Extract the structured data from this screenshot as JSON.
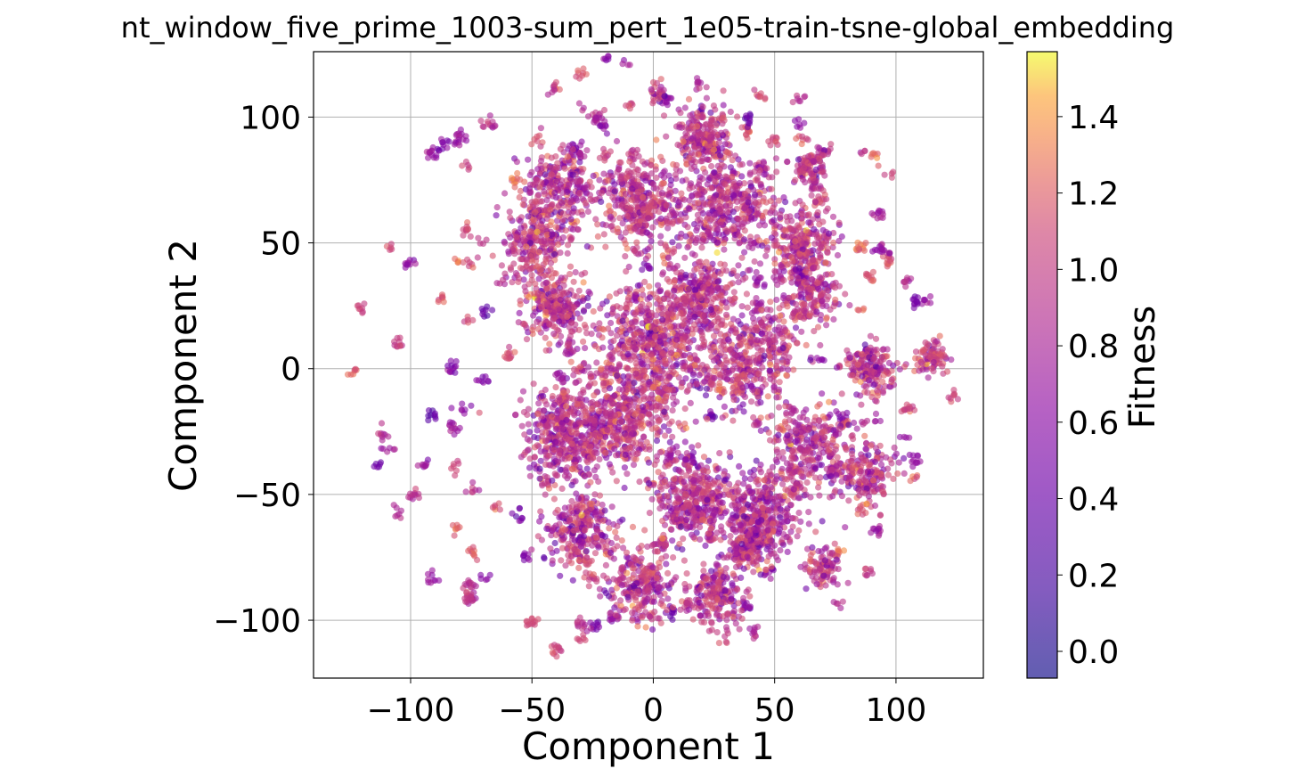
{
  "chart_data": {
    "type": "scatter",
    "title": "nt_window_five_prime_1003-sum_pert_1e05-train-tsne-global_embedding",
    "xlabel": "Component 1",
    "ylabel": "Component 2",
    "xlim": [
      -140,
      136
    ],
    "ylim": [
      -123,
      126
    ],
    "xticks": [
      -100,
      -50,
      0,
      50,
      100
    ],
    "yticks": [
      -100,
      -50,
      0,
      50,
      100
    ],
    "xtick_labels": [
      "−100",
      "−50",
      "0",
      "50",
      "100"
    ],
    "ytick_labels": [
      "−100",
      "−50",
      "0",
      "50",
      "100"
    ],
    "grid": true,
    "colormap": "plasma",
    "point_alpha": 0.6,
    "colorbar": {
      "label": "Fitness",
      "range": [
        -0.07,
        1.57
      ],
      "ticks": [
        0.0,
        0.2,
        0.4,
        0.6,
        0.8,
        1.0,
        1.2,
        1.4
      ],
      "tick_labels": [
        "0.0",
        "0.2",
        "0.4",
        "0.6",
        "0.8",
        "1.0",
        "1.2",
        "1.4"
      ]
    },
    "clusters": [
      {
        "x": -40,
        "y": 25,
        "r": 12,
        "n": 260,
        "value": 0.95
      },
      {
        "x": -35,
        "y": -25,
        "r": 18,
        "n": 420,
        "value": 0.9
      },
      {
        "x": 0,
        "y": 10,
        "r": 22,
        "n": 620,
        "value": 0.95
      },
      {
        "x": -5,
        "y": 65,
        "r": 16,
        "n": 380,
        "value": 0.95
      },
      {
        "x": 20,
        "y": 92,
        "r": 10,
        "n": 180,
        "value": 0.95
      },
      {
        "x": 30,
        "y": 65,
        "r": 18,
        "n": 420,
        "value": 0.9
      },
      {
        "x": -40,
        "y": 70,
        "r": 14,
        "n": 260,
        "value": 0.95
      },
      {
        "x": -50,
        "y": 48,
        "r": 12,
        "n": 200,
        "value": 0.95
      },
      {
        "x": 60,
        "y": 50,
        "r": 14,
        "n": 260,
        "value": 0.95
      },
      {
        "x": 65,
        "y": 30,
        "r": 10,
        "n": 160,
        "value": 0.95
      },
      {
        "x": 40,
        "y": 5,
        "r": 18,
        "n": 380,
        "value": 0.95
      },
      {
        "x": 90,
        "y": 0,
        "r": 9,
        "n": 170,
        "value": 0.95
      },
      {
        "x": 65,
        "y": -30,
        "r": 14,
        "n": 260,
        "value": 0.9
      },
      {
        "x": 45,
        "y": -55,
        "r": 16,
        "n": 340,
        "value": 0.85
      },
      {
        "x": 15,
        "y": -50,
        "r": 16,
        "n": 340,
        "value": 0.9
      },
      {
        "x": -5,
        "y": -85,
        "r": 12,
        "n": 220,
        "value": 0.95
      },
      {
        "x": -30,
        "y": -65,
        "r": 14,
        "n": 260,
        "value": 0.9
      },
      {
        "x": 25,
        "y": -90,
        "r": 10,
        "n": 190,
        "value": 0.9
      },
      {
        "x": 40,
        "y": -70,
        "r": 10,
        "n": 180,
        "value": 0.9
      },
      {
        "x": 88,
        "y": -42,
        "r": 10,
        "n": 170,
        "value": 0.9
      },
      {
        "x": 70,
        "y": -78,
        "r": 7,
        "n": 90,
        "value": 0.95
      },
      {
        "x": -10,
        "y": -20,
        "r": 16,
        "n": 340,
        "value": 0.95
      },
      {
        "x": 20,
        "y": 30,
        "r": 14,
        "n": 280,
        "value": 0.95
      },
      {
        "x": 115,
        "y": 5,
        "r": 6,
        "n": 80,
        "value": 1.0
      },
      {
        "x": 2,
        "y": 110,
        "r": 4,
        "n": 30,
        "value": 0.95
      },
      {
        "x": 65,
        "y": 80,
        "r": 6,
        "n": 70,
        "value": 0.95
      }
    ],
    "scatter_field": {
      "n": 1800,
      "center": [
        0,
        0
      ],
      "radius": 125,
      "mean_value": 0.85
    }
  }
}
